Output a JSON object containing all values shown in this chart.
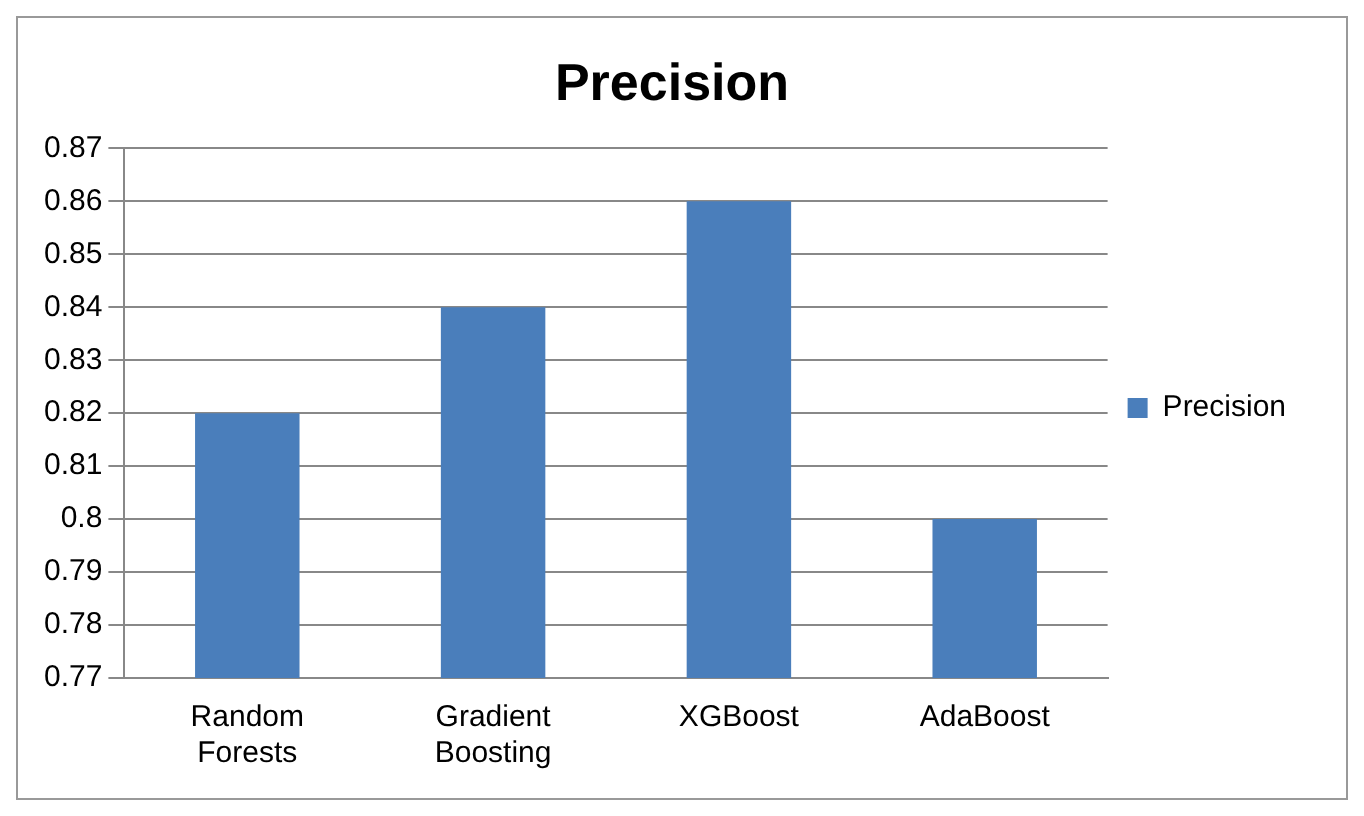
{
  "chart_data": {
    "type": "bar",
    "title": "Precision",
    "categories": [
      "Random Forests",
      "Gradient Boosting",
      "XGBoost",
      "AdaBoost"
    ],
    "series": [
      {
        "name": "Precision",
        "color": "#4a7ebb",
        "values": [
          0.82,
          0.84,
          0.86,
          0.8
        ]
      }
    ],
    "ylim": [
      0.77,
      0.87
    ],
    "yticks": [
      0.77,
      0.78,
      0.79,
      0.8,
      0.81,
      0.82,
      0.83,
      0.84,
      0.85,
      0.86,
      0.87
    ],
    "grid": "y",
    "legend": "right"
  }
}
